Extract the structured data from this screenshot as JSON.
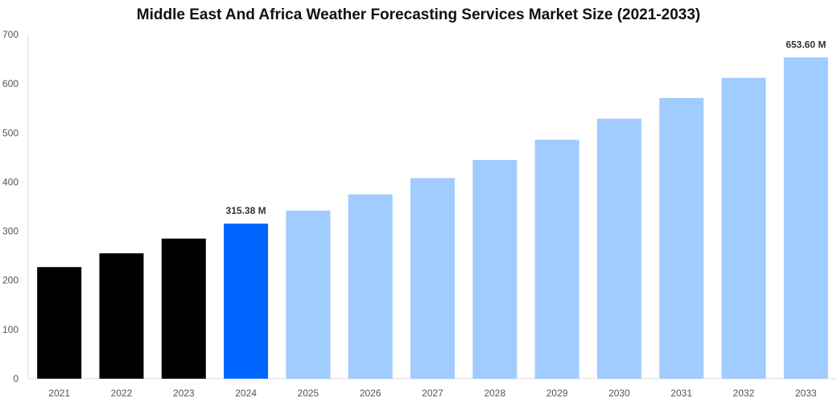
{
  "chart_data": {
    "type": "bar",
    "title": "Middle East And Africa Weather Forecasting Services Market Size (2021-2033)",
    "xlabel": "",
    "ylabel": "",
    "ylim": [
      0,
      700
    ],
    "yticks": [
      0,
      100,
      200,
      300,
      400,
      500,
      600,
      700
    ],
    "grid": false,
    "categories": [
      "2021",
      "2022",
      "2023",
      "2024",
      "2025",
      "2026",
      "2027",
      "2028",
      "2029",
      "2030",
      "2031",
      "2032",
      "2033"
    ],
    "values": [
      227,
      255,
      285,
      315.38,
      342,
      375,
      408,
      445,
      486,
      529,
      571,
      612,
      653.6
    ],
    "colors": [
      "#000000",
      "#000000",
      "#000000",
      "#0066ff",
      "#a0ccff",
      "#a0ccff",
      "#a0ccff",
      "#a0ccff",
      "#a0ccff",
      "#a0ccff",
      "#a0ccff",
      "#a0ccff",
      "#a0ccff"
    ],
    "data_labels": {
      "2024": "315.38 M",
      "2033": "653.60 M"
    }
  }
}
